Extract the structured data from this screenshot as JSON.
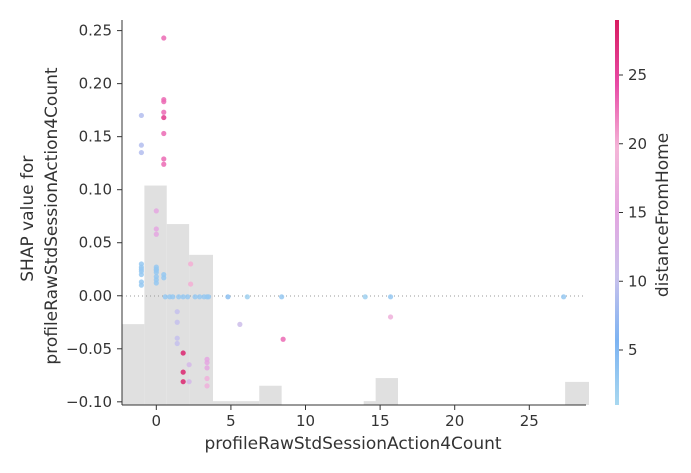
{
  "chart_data": {
    "type": "scatter",
    "xlabel": "profileRawStdSessionAction4Count",
    "ylabel_lines": [
      "SHAP value for",
      "profileRawStdSessionAction4Count"
    ],
    "colorbar_label": "distanceFromHome",
    "xlim": [
      -2.3,
      28.8
    ],
    "ylim": [
      -0.103,
      0.26
    ],
    "x_ticks": [
      0,
      5,
      10,
      15,
      20,
      25
    ],
    "y_ticks": [
      -0.1,
      -0.05,
      0.0,
      0.05,
      0.1,
      0.15,
      0.2,
      0.25
    ],
    "y_tick_labels": [
      "−0.10",
      "−0.05",
      "0.00",
      "0.05",
      "0.10",
      "0.15",
      "0.20",
      "0.25"
    ],
    "colorbar_range": [
      1,
      29
    ],
    "colorbar_ticks": [
      5,
      10,
      15,
      20,
      25
    ],
    "colormap": [
      "#a8d8f0",
      "#7cb3f2",
      "#c9c1ec",
      "#e4a6e0",
      "#f4b6d8",
      "#e84ba6",
      "#d81b60"
    ],
    "zero_line": true,
    "grid": false,
    "histogram_color": "#e0e0e0",
    "histogram_bins": [
      {
        "x0": -2.3,
        "x1": -0.8,
        "height": 0.21
      },
      {
        "x0": -0.8,
        "x1": 0.7,
        "height": 0.57
      },
      {
        "x0": 0.7,
        "x1": 2.2,
        "height": 0.47
      },
      {
        "x0": 2.2,
        "x1": 3.8,
        "height": 0.39
      },
      {
        "x0": 3.8,
        "x1": 5.3,
        "height": 0.01
      },
      {
        "x0": 5.3,
        "x1": 6.9,
        "height": 0.01
      },
      {
        "x0": 6.9,
        "x1": 8.4,
        "height": 0.05
      },
      {
        "x0": 13.9,
        "x1": 15.5,
        "height": 0.01
      },
      {
        "x0": 14.7,
        "x1": 16.2,
        "height": 0.07
      },
      {
        "x0": 27.4,
        "x1": 29.0,
        "height": 0.06
      }
    ],
    "points": [
      {
        "x": -1.0,
        "y": 0.17,
        "c": 9
      },
      {
        "x": -1.0,
        "y": 0.142,
        "c": 9
      },
      {
        "x": -1.0,
        "y": 0.135,
        "c": 9
      },
      {
        "x": -1.0,
        "y": 0.03,
        "c": 3
      },
      {
        "x": -1.0,
        "y": 0.027,
        "c": 3
      },
      {
        "x": -1.0,
        "y": 0.025,
        "c": 3
      },
      {
        "x": -1.0,
        "y": 0.023,
        "c": 3
      },
      {
        "x": -1.0,
        "y": 0.02,
        "c": 3
      },
      {
        "x": -1.0,
        "y": 0.013,
        "c": 3
      },
      {
        "x": -1.0,
        "y": 0.01,
        "c": 3
      },
      {
        "x": 0.0,
        "y": 0.08,
        "c": 15
      },
      {
        "x": 0.0,
        "y": 0.063,
        "c": 15
      },
      {
        "x": 0.0,
        "y": 0.058,
        "c": 15
      },
      {
        "x": 0.0,
        "y": 0.027,
        "c": 3
      },
      {
        "x": 0.0,
        "y": 0.025,
        "c": 3
      },
      {
        "x": 0.0,
        "y": 0.024,
        "c": 3
      },
      {
        "x": 0.0,
        "y": 0.022,
        "c": 3
      },
      {
        "x": 0.0,
        "y": 0.018,
        "c": 3
      },
      {
        "x": 0.0,
        "y": 0.015,
        "c": 3
      },
      {
        "x": 0.0,
        "y": 0.012,
        "c": 3
      },
      {
        "x": 0.5,
        "y": 0.243,
        "c": 23
      },
      {
        "x": 0.5,
        "y": 0.185,
        "c": 23
      },
      {
        "x": 0.5,
        "y": 0.183,
        "c": 23
      },
      {
        "x": 0.5,
        "y": 0.173,
        "c": 23
      },
      {
        "x": 0.5,
        "y": 0.168,
        "c": 26
      },
      {
        "x": 0.5,
        "y": 0.153,
        "c": 23
      },
      {
        "x": 0.5,
        "y": 0.129,
        "c": 23
      },
      {
        "x": 0.5,
        "y": 0.124,
        "c": 23
      },
      {
        "x": 0.5,
        "y": 0.02,
        "c": 3
      },
      {
        "x": 0.5,
        "y": 0.017,
        "c": 3
      },
      {
        "x": 0.6,
        "y": -0.001,
        "c": 3
      },
      {
        "x": 0.9,
        "y": -0.001,
        "c": 3
      },
      {
        "x": 1.1,
        "y": -0.001,
        "c": 3
      },
      {
        "x": 1.4,
        "y": -0.015,
        "c": 10
      },
      {
        "x": 1.4,
        "y": -0.025,
        "c": 10
      },
      {
        "x": 1.4,
        "y": -0.04,
        "c": 10
      },
      {
        "x": 1.4,
        "y": -0.045,
        "c": 10
      },
      {
        "x": 1.5,
        "y": -0.001,
        "c": 3
      },
      {
        "x": 1.8,
        "y": -0.054,
        "c": 28
      },
      {
        "x": 1.8,
        "y": -0.072,
        "c": 28
      },
      {
        "x": 1.8,
        "y": -0.081,
        "c": 28
      },
      {
        "x": 1.8,
        "y": -0.001,
        "c": 3
      },
      {
        "x": 2.1,
        "y": -0.001,
        "c": 3
      },
      {
        "x": 2.2,
        "y": -0.065,
        "c": 12
      },
      {
        "x": 2.2,
        "y": -0.081,
        "c": 12
      },
      {
        "x": 2.3,
        "y": 0.03,
        "c": 20
      },
      {
        "x": 2.3,
        "y": 0.011,
        "c": 20
      },
      {
        "x": 2.6,
        "y": -0.001,
        "c": 3
      },
      {
        "x": 2.9,
        "y": -0.001,
        "c": 3
      },
      {
        "x": 3.2,
        "y": -0.001,
        "c": 3
      },
      {
        "x": 3.4,
        "y": -0.001,
        "c": 3
      },
      {
        "x": 3.5,
        "y": -0.001,
        "c": 3
      },
      {
        "x": 3.4,
        "y": -0.06,
        "c": 15
      },
      {
        "x": 3.4,
        "y": -0.063,
        "c": 15
      },
      {
        "x": 3.4,
        "y": -0.068,
        "c": 15
      },
      {
        "x": 3.4,
        "y": -0.078,
        "c": 18
      },
      {
        "x": 3.4,
        "y": -0.085,
        "c": 18
      },
      {
        "x": 4.8,
        "y": -0.001,
        "c": 4
      },
      {
        "x": 5.6,
        "y": -0.027,
        "c": 11
      },
      {
        "x": 6.1,
        "y": -0.001,
        "c": 2
      },
      {
        "x": 8.4,
        "y": -0.001,
        "c": 3
      },
      {
        "x": 8.5,
        "y": -0.041,
        "c": 23
      },
      {
        "x": 14.0,
        "y": -0.001,
        "c": 2
      },
      {
        "x": 15.7,
        "y": -0.001,
        "c": 3
      },
      {
        "x": 15.7,
        "y": -0.02,
        "c": 18
      },
      {
        "x": 27.3,
        "y": -0.001,
        "c": 3
      }
    ]
  }
}
